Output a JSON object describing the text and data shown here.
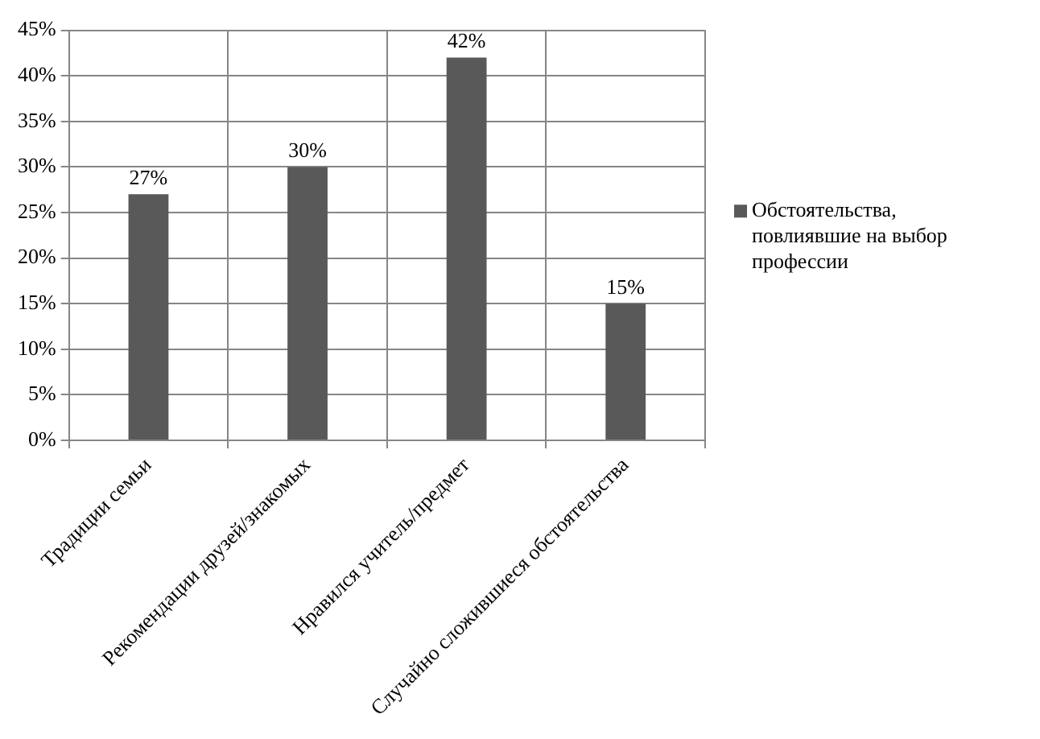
{
  "chart_data": {
    "type": "bar",
    "categories": [
      "Традиции семьи",
      "Рекомендации друзей/знакомых",
      "Нравился учитель/предмет",
      "Случайно сложившиеся обстоятельства"
    ],
    "series": [
      {
        "name": "Обстоятельства, повлиявшие на выбор профессии",
        "color": "#595959",
        "values": [
          27,
          30,
          42,
          15
        ],
        "value_labels": [
          "27%",
          "30%",
          "42%",
          "15%"
        ]
      }
    ],
    "ylim": [
      0,
      45
    ],
    "yticks": [
      {
        "value": 0,
        "label": "0%"
      },
      {
        "value": 5,
        "label": "5%"
      },
      {
        "value": 10,
        "label": "10%"
      },
      {
        "value": 15,
        "label": "15%"
      },
      {
        "value": 20,
        "label": "20%"
      },
      {
        "value": 25,
        "label": "25%"
      },
      {
        "value": 30,
        "label": "30%"
      },
      {
        "value": 35,
        "label": "35%"
      },
      {
        "value": 40,
        "label": "40%"
      },
      {
        "value": 45,
        "label": "45%"
      }
    ],
    "grid": true,
    "legend": "right"
  }
}
